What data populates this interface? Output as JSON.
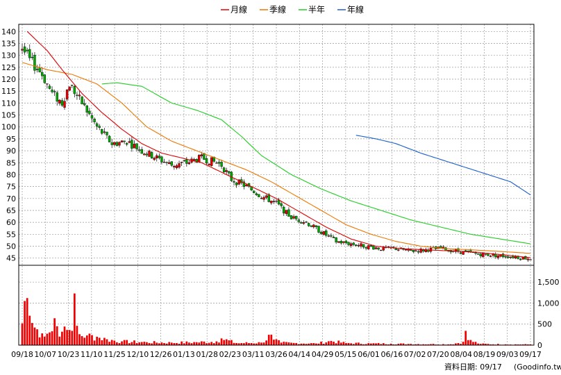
{
  "chart_data": {
    "type": "candlestick+line+bar",
    "legend": [
      {
        "name": "月線",
        "color": "#dd0000"
      },
      {
        "name": "季線",
        "color": "#ee7700"
      },
      {
        "name": "半年",
        "color": "#22cc22"
      },
      {
        "name": "年線",
        "color": "#1a5fcc"
      }
    ],
    "colors": {
      "up": "#ee0000",
      "down": "#00aa00",
      "volume": "#ee0000",
      "grid": "#999999"
    },
    "price_axis": {
      "min": 42,
      "max": 143,
      "ticks": [
        45,
        50,
        55,
        60,
        65,
        70,
        75,
        80,
        85,
        90,
        95,
        100,
        105,
        110,
        115,
        120,
        125,
        130,
        135,
        140
      ]
    },
    "volume_axis": {
      "min": 0,
      "max": 1900,
      "ticks": [
        0,
        500,
        1000,
        1500
      ],
      "tick_labels": [
        "0",
        "500",
        "1,000",
        "1,500"
      ]
    },
    "x_ticks": [
      "09/18",
      "10/07",
      "10/23",
      "11/10",
      "11/25",
      "12/10",
      "12/26",
      "01/13",
      "01/28",
      "02/23",
      "03/11",
      "03/26",
      "04/14",
      "04/29",
      "05/15",
      "06/01",
      "06/16",
      "07/02",
      "07/20",
      "08/04",
      "08/19",
      "09/03",
      "09/17"
    ],
    "close_anchors": [
      [
        0,
        133
      ],
      [
        3,
        128
      ],
      [
        8,
        122
      ],
      [
        12,
        114
      ],
      [
        16,
        110
      ],
      [
        19,
        118
      ],
      [
        24,
        110
      ],
      [
        30,
        100
      ],
      [
        36,
        93
      ],
      [
        42,
        94
      ],
      [
        48,
        90
      ],
      [
        54,
        87
      ],
      [
        60,
        84
      ],
      [
        66,
        85
      ],
      [
        72,
        87
      ],
      [
        78,
        85
      ],
      [
        80,
        84
      ],
      [
        84,
        78
      ],
      [
        90,
        75
      ],
      [
        96,
        71
      ],
      [
        102,
        68
      ],
      [
        108,
        62
      ],
      [
        114,
        60
      ],
      [
        120,
        56
      ],
      [
        126,
        52
      ],
      [
        132,
        51
      ],
      [
        138,
        50
      ],
      [
        144,
        49
      ],
      [
        150,
        49
      ],
      [
        156,
        48
      ],
      [
        162,
        48.5
      ],
      [
        168,
        49
      ],
      [
        174,
        48
      ],
      [
        180,
        47
      ],
      [
        186,
        46.5
      ],
      [
        192,
        46
      ],
      [
        198,
        45.5
      ],
      [
        204,
        44.8
      ]
    ],
    "ma20_anchors": [
      [
        2,
        140
      ],
      [
        10,
        132
      ],
      [
        16,
        124
      ],
      [
        24,
        114
      ],
      [
        32,
        106
      ],
      [
        40,
        99
      ],
      [
        48,
        93
      ],
      [
        56,
        89
      ],
      [
        64,
        87
      ],
      [
        72,
        85
      ],
      [
        82,
        80
      ],
      [
        92,
        75
      ],
      [
        102,
        70
      ],
      [
        112,
        64
      ],
      [
        122,
        58
      ],
      [
        132,
        53
      ],
      [
        142,
        50
      ],
      [
        152,
        49
      ],
      [
        162,
        48.5
      ],
      [
        172,
        48
      ],
      [
        182,
        47.5
      ],
      [
        194,
        46.3
      ],
      [
        204,
        45.2
      ]
    ],
    "ma60_anchors": [
      [
        0,
        127
      ],
      [
        10,
        124
      ],
      [
        20,
        122
      ],
      [
        30,
        118
      ],
      [
        40,
        110
      ],
      [
        50,
        100
      ],
      [
        60,
        94
      ],
      [
        70,
        90
      ],
      [
        80,
        86
      ],
      [
        90,
        82
      ],
      [
        100,
        77
      ],
      [
        110,
        71
      ],
      [
        120,
        65
      ],
      [
        130,
        59
      ],
      [
        140,
        55
      ],
      [
        150,
        52
      ],
      [
        160,
        50
      ],
      [
        170,
        49
      ],
      [
        180,
        48.5
      ],
      [
        192,
        47.8
      ],
      [
        204,
        47
      ]
    ],
    "ma120_anchors": [
      [
        32,
        118
      ],
      [
        38,
        118.5
      ],
      [
        48,
        117
      ],
      [
        60,
        110
      ],
      [
        70,
        107
      ],
      [
        80,
        103
      ],
      [
        88,
        96
      ],
      [
        96,
        88
      ],
      [
        108,
        80
      ],
      [
        120,
        74
      ],
      [
        132,
        69
      ],
      [
        144,
        65
      ],
      [
        156,
        61
      ],
      [
        168,
        58
      ],
      [
        180,
        55
      ],
      [
        192,
        53
      ],
      [
        204,
        51
      ]
    ],
    "ma240_anchors": [
      [
        134,
        96.5
      ],
      [
        142,
        95
      ],
      [
        150,
        93
      ],
      [
        160,
        89
      ],
      [
        172,
        85
      ],
      [
        184,
        81
      ],
      [
        196,
        77
      ],
      [
        204,
        71.5
      ]
    ],
    "volume_anchors": [
      [
        0,
        520
      ],
      [
        1,
        1050
      ],
      [
        2,
        1120
      ],
      [
        3,
        700
      ],
      [
        5,
        420
      ],
      [
        8,
        280
      ],
      [
        12,
        330
      ],
      [
        13,
        640
      ],
      [
        14,
        450
      ],
      [
        16,
        320
      ],
      [
        19,
        360
      ],
      [
        20,
        340
      ],
      [
        21,
        1230
      ],
      [
        22,
        460
      ],
      [
        23,
        260
      ],
      [
        26,
        230
      ],
      [
        30,
        200
      ],
      [
        34,
        140
      ],
      [
        40,
        90
      ],
      [
        50,
        70
      ],
      [
        60,
        60
      ],
      [
        70,
        70
      ],
      [
        78,
        90
      ],
      [
        80,
        160
      ],
      [
        86,
        50
      ],
      [
        96,
        60
      ],
      [
        100,
        250
      ],
      [
        101,
        130
      ],
      [
        104,
        60
      ],
      [
        110,
        50
      ],
      [
        118,
        40
      ],
      [
        124,
        100
      ],
      [
        130,
        50
      ],
      [
        140,
        40
      ],
      [
        148,
        35
      ],
      [
        156,
        30
      ],
      [
        164,
        25
      ],
      [
        172,
        22
      ],
      [
        177,
        80
      ],
      [
        178,
        340
      ],
      [
        179,
        120
      ],
      [
        184,
        30
      ],
      [
        194,
        20
      ],
      [
        204,
        18
      ]
    ]
  },
  "footer": {
    "date_label": "資料日期: 09/17",
    "source": "(Goodinfo.tw)"
  }
}
